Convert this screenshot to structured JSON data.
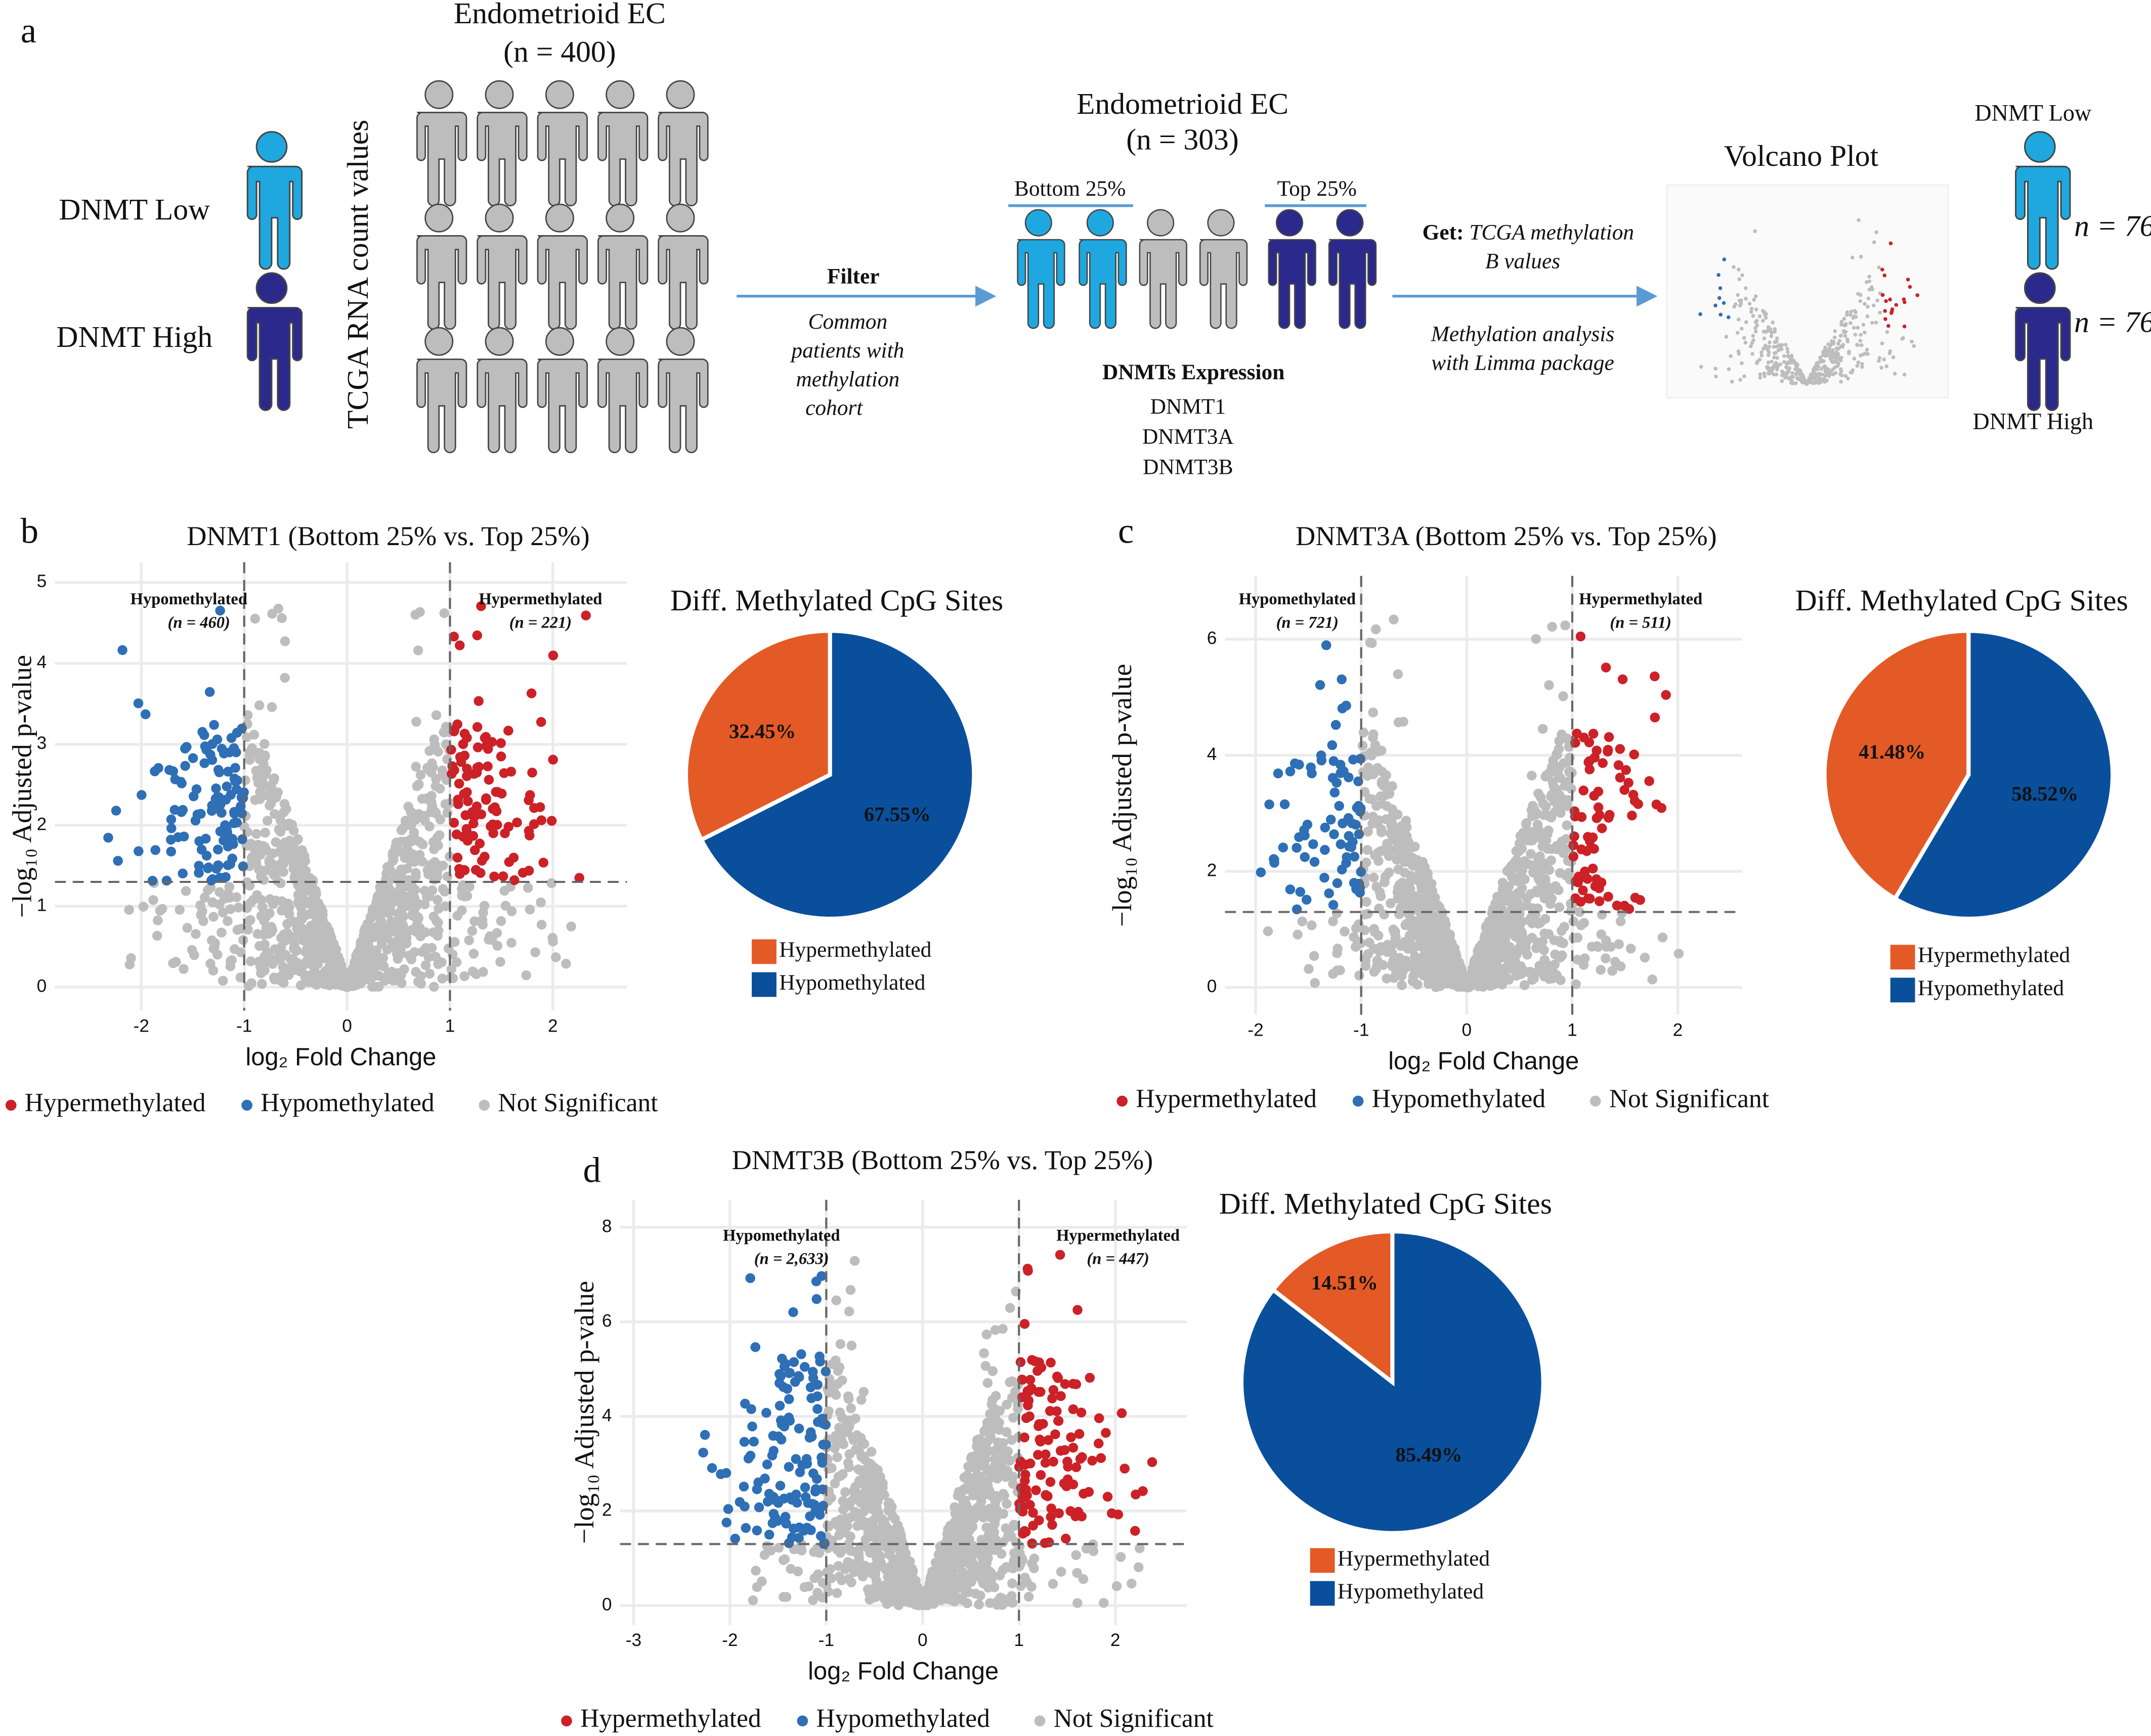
{
  "panel_a": {
    "label": "a",
    "cohort_all": {
      "title": "Endometrioid EC",
      "n": "(n = 400)"
    },
    "axis_label": "TCGA RNA count values",
    "low": "DNMT Low",
    "high": "DNMT High",
    "filter": {
      "title": "Filter",
      "text": [
        "Common",
        "patients with",
        "methylation",
        "cohort"
      ]
    },
    "cohort_filtered": {
      "title": "Endometrioid EC",
      "n": "(n = 303)",
      "bottom": "Bottom 25%",
      "top": "Top 25%",
      "expression_title": "DNMTs Expression",
      "genes": [
        "DNMT1",
        "DNMT3A",
        "DNMT3B"
      ]
    },
    "get": {
      "title": "Get:",
      "text": [
        "TCGA methylation",
        "B values"
      ]
    },
    "analysis": [
      "Methylation analysis",
      "with Limma package"
    ],
    "volcano_title": "Volcano Plot",
    "groups": [
      {
        "name": "DNMT Low",
        "n": "n = 76"
      },
      {
        "name": "DNMT High",
        "n": "n = 76"
      }
    ]
  },
  "chart_data": [
    {
      "type": "scatter",
      "panel": "b",
      "title": "DNMT1 (Bottom 25% vs. Top 25%)",
      "xlabel": "log₂ Fold Change",
      "ylabel": "−log₁₀ Adjusted p-value",
      "xlim": [
        -2.84,
        2.72
      ],
      "ylim": [
        -0.29,
        5.25
      ],
      "xticks": [
        -2,
        -1,
        0,
        1,
        2
      ],
      "yticks": [
        0,
        1,
        2,
        3,
        4,
        5
      ],
      "grid": true,
      "thresholds": {
        "x": [
          -1,
          1
        ],
        "y": 1.3
      },
      "annotations": [
        {
          "text": "Hypomethylated",
          "count": "(n = 460)",
          "color": "#2e6fb6"
        },
        {
          "text": "Hypermethylated",
          "count": "(n = 221)",
          "color": "#cc2127"
        }
      ],
      "legend": [
        {
          "name": "Hypermethylated",
          "color": "#cc2127"
        },
        {
          "name": "Hypomethylated",
          "color": "#2e6fb6"
        },
        {
          "name": "Not Significant",
          "color": "#bdbdbd"
        }
      ]
    },
    {
      "type": "pie",
      "title": "Diff. Methylated CpG Sites",
      "labels": [
        "Hypermethylated",
        "Hypomethylated"
      ],
      "values": [
        32.45,
        67.55
      ],
      "value_labels": [
        "32.45%",
        "67.55%"
      ],
      "colors": [
        "#e35a27",
        "#0a4f9c"
      ]
    },
    {
      "type": "scatter",
      "panel": "c",
      "title": "DNMT3A (Bottom 25% vs. Top 25%)",
      "xlabel": "log₂ Fold Change",
      "ylabel": "−log₁₀ Adjusted p-value",
      "xlim": [
        -2.29,
        2.61
      ],
      "ylim": [
        -0.47,
        7.09
      ],
      "xticks": [
        -2,
        -1,
        0,
        1,
        2
      ],
      "yticks": [
        0,
        2,
        4,
        6
      ],
      "grid": true,
      "thresholds": {
        "x": [
          -1,
          1
        ],
        "y": 1.3
      },
      "annotations": [
        {
          "text": "Hypomethylated",
          "count": "(n = 721)",
          "color": "#2e6fb6"
        },
        {
          "text": "Hypermethylated",
          "count": "(n = 511)",
          "color": "#cc2127"
        }
      ],
      "legend": [
        {
          "name": "Hypermethylated",
          "color": "#cc2127"
        },
        {
          "name": "Hypomethylated",
          "color": "#2e6fb6"
        },
        {
          "name": "Not Significant",
          "color": "#bdbdbd"
        }
      ]
    },
    {
      "type": "pie",
      "title": "Diff. Methylated CpG Sites",
      "labels": [
        "Hypermethylated",
        "Hypomethylated"
      ],
      "values": [
        41.48,
        58.52
      ],
      "value_labels": [
        "41.48%",
        "58.52%"
      ],
      "colors": [
        "#e35a27",
        "#0a4f9c"
      ]
    },
    {
      "type": "scatter",
      "panel": "d",
      "title": "DNMT3B (Bottom 25% vs. Top 25%)",
      "xlabel": "log₂ Fold Change",
      "ylabel": "−log₁₀ Adjusted p-value",
      "xlim": [
        -3.14,
        2.74
      ],
      "ylim": [
        -0.41,
        8.58
      ],
      "xticks": [
        -3,
        -2,
        -1,
        0,
        1,
        2
      ],
      "yticks": [
        0,
        2,
        4,
        6,
        8
      ],
      "grid": true,
      "thresholds": {
        "x": [
          -1,
          1
        ],
        "y": 1.3
      },
      "annotations": [
        {
          "text": "Hypomethylated",
          "count": "(n = 2,633)",
          "color": "#2e6fb6"
        },
        {
          "text": "Hypermethylated",
          "count": "(n = 447)",
          "color": "#cc2127"
        }
      ],
      "legend": [
        {
          "name": "Hypermethylated",
          "color": "#cc2127"
        },
        {
          "name": "Hypomethylated",
          "color": "#2e6fb6"
        },
        {
          "name": "Not Significant",
          "color": "#bdbdbd"
        }
      ]
    },
    {
      "type": "pie",
      "title": "Diff. Methylated CpG Sites",
      "labels": [
        "Hypermethylated",
        "Hypomethylated"
      ],
      "values": [
        14.51,
        85.49
      ],
      "value_labels": [
        "14.51%",
        "85.49%"
      ],
      "colors": [
        "#e35a27",
        "#0a4f9c"
      ]
    }
  ]
}
